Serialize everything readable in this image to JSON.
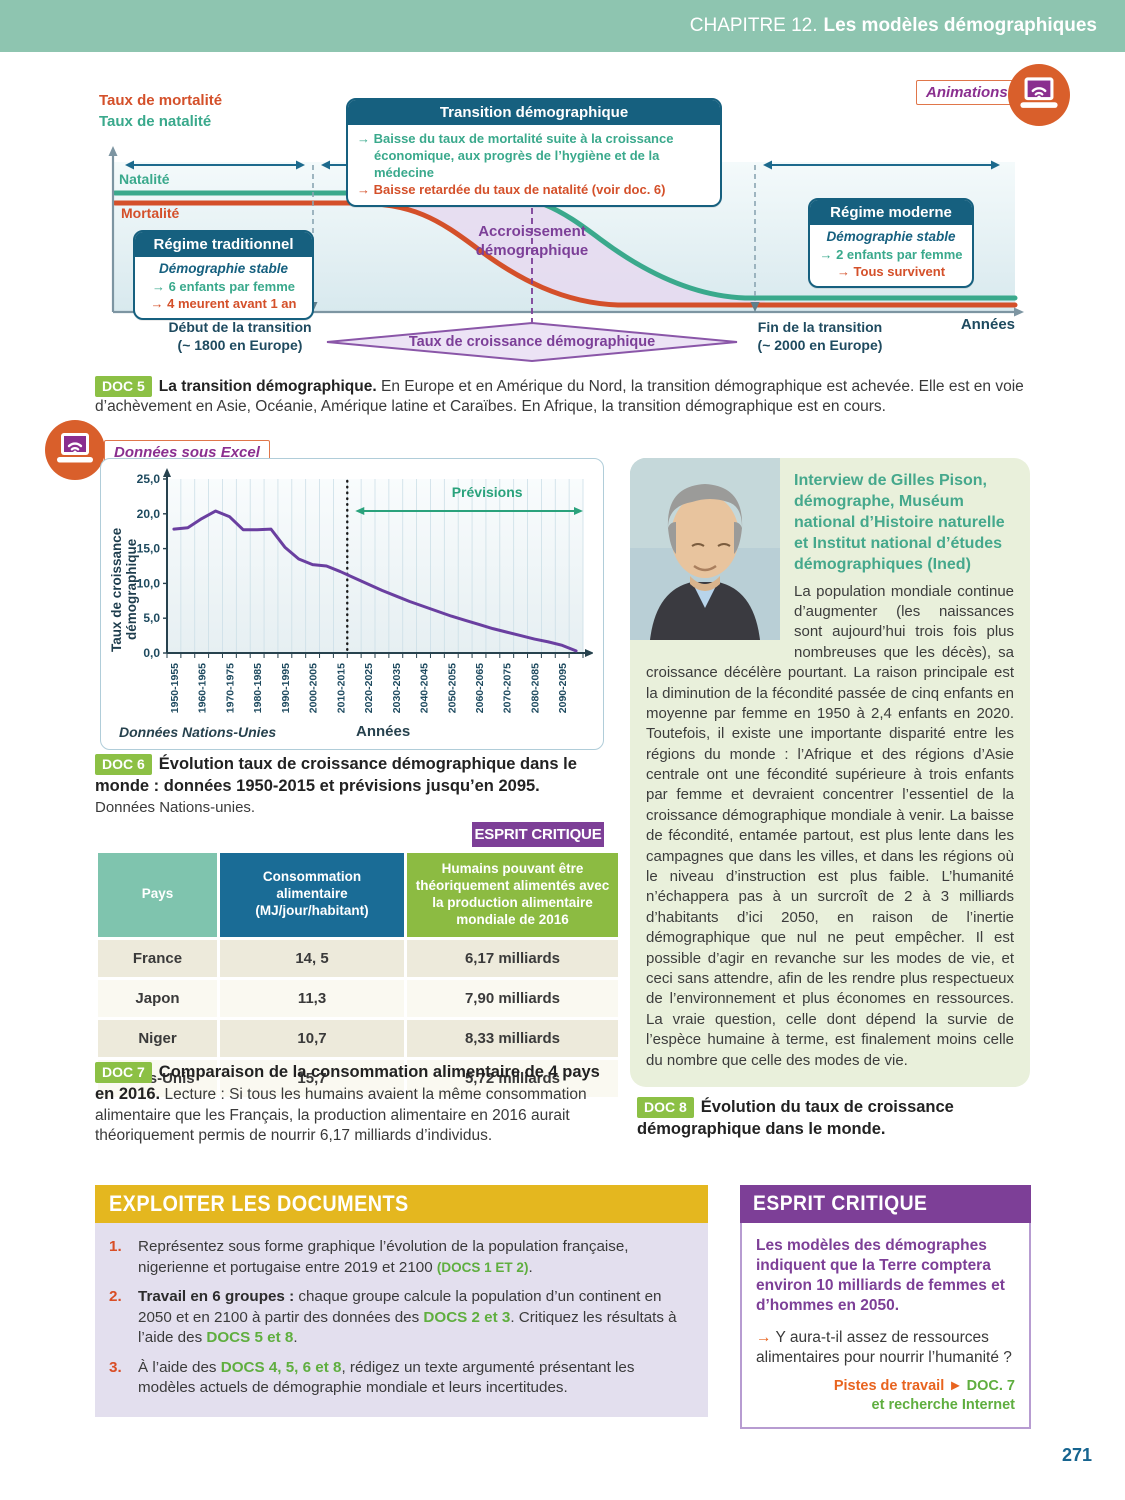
{
  "page": {
    "chapter_prefix": "CHAPITRE 12.",
    "chapter_title": "Les modèles démographiques",
    "page_number": "271"
  },
  "badges": {
    "animations": "Animations",
    "excel": "Données sous Excel"
  },
  "doc5": {
    "badge": "DOC 5",
    "caption_bold": "La transition démographique.",
    "caption_rest": " En Europe et en Amérique du Nord, la transition démographique est achevée. Elle est en voie d’achèvement en Asie, Océanie, Amérique latine et Caraïbes. En Afrique, la transition démographique est en cours.",
    "diagram": {
      "ylab_line1": "Taux de mortalité",
      "ylab_line2": "Taux de natalité",
      "natalite": "Natalité",
      "mortalite": "Mortalité",
      "transition": {
        "title": "Transition démographique",
        "bullet_green": "→ Baisse du taux de mortalité suite à la croissance économique, aux progrès de l’hygiène et de la médecine",
        "bullet_red": "→ Baisse retardée du taux de natalité (voir doc. 6)"
      },
      "regime_trad": {
        "title": "Régime traditionnel",
        "subtitle": "Démographie stable",
        "line_green": "→ 6 enfants par femme",
        "line_red": "→ 4 meurent avant 1 an"
      },
      "regime_mod": {
        "title": "Régime moderne",
        "subtitle": "Démographie stable",
        "line_green": "→ 2 enfants par femme",
        "line_red": "→ Tous survivent"
      },
      "accroissement_l1": "Accroissement",
      "accroissement_l2": "démographique",
      "diamond": "Taux de croissance démographique",
      "debut_l1": "Début de la transition",
      "debut_l2": "(~ 1800 en Europe)",
      "fin_l1": "Fin de la transition",
      "fin_l2": "(~ 2000 en Europe)",
      "annees": "Années"
    }
  },
  "chart_data": {
    "type": "line",
    "categories": [
      "1950-1955",
      "1955-1960",
      "1960-1965",
      "1965-1970",
      "1970-1975",
      "1975-1980",
      "1980-1985",
      "1985-1990",
      "1990-1995",
      "1995-2000",
      "2000-2005",
      "2005-2010",
      "2010-2015",
      "2015-2020",
      "2020-2025",
      "2025-2030",
      "2030-2035",
      "2035-2040",
      "2040-2045",
      "2045-2050",
      "2050-2055",
      "2055-2060",
      "2060-2065",
      "2065-2070",
      "2070-2075",
      "2075-2080",
      "2080-2085",
      "2085-2090",
      "2090-2095",
      "2095-2100"
    ],
    "values": [
      17.8,
      18.0,
      19.3,
      20.4,
      19.6,
      17.7,
      17.7,
      17.8,
      15.2,
      13.5,
      12.7,
      12.5,
      11.7,
      10.8,
      9.9,
      9.0,
      8.2,
      7.4,
      6.7,
      6.0,
      5.3,
      4.7,
      4.1,
      3.5,
      3.0,
      2.5,
      2.0,
      1.6,
      1.1,
      0.3
    ],
    "visible_tick_labels": [
      "1950-1955",
      "1960-1965",
      "1970-1975",
      "1980-1985",
      "1990-1995",
      "2000-2005",
      "2010-2015",
      "2020-2025",
      "2030-2035",
      "2040-2045",
      "2050-2055",
      "2060-2065",
      "2070-2075",
      "2080-2085",
      "2090-2095"
    ],
    "yticks": [
      "0,0",
      "5,0",
      "10,0",
      "15,0",
      "20,0",
      "25,0"
    ],
    "ylim": [
      0,
      25
    ],
    "ylabel": "Taux de croissance démographique",
    "xlabel": "Années",
    "source": "Données Nations-Unies",
    "annotation": "Prévisions",
    "forecast_boundary_index": 13,
    "line_color": "#6a3fa0",
    "grid": true,
    "legend": "none"
  },
  "doc6": {
    "badge": "DOC 6",
    "caption_bold": "Évolution taux de croissance démographique dans le monde : données 1950-2015 et prévisions jusqu’en 2095.",
    "caption_source": "Données Nations-unies."
  },
  "esprit_table_badge": "ESPRIT CRITIQUE",
  "table": {
    "headers": [
      "Pays",
      "Consommation alimentaire (MJ/jour/habitant)",
      "Humains pouvant être théoriquement alimentés avec la production alimentaire mondiale de 2016"
    ],
    "rows": [
      {
        "pays": "France",
        "conso": "14, 5",
        "humains": "6,17 milliards"
      },
      {
        "pays": "Japon",
        "conso": "11,3",
        "humains": "7,90 milliards"
      },
      {
        "pays": "Niger",
        "conso": "10,7",
        "humains": "8,33 milliards"
      },
      {
        "pays": "États-Unis",
        "conso": "15,7",
        "humains": "5,72 milliards"
      }
    ]
  },
  "doc7": {
    "badge": "DOC 7",
    "caption_bold": "Comparaison de la consommation alimentaire de 4 pays en 2016.",
    "caption_rest": " Lecture : Si tous les humains avaient la même consommation alimentaire que les Français, la production alimentaire en 2016 aurait théoriquement permis de nourrir 6,17 milliards d’individus."
  },
  "interview": {
    "heading": "Interview de Gilles Pison, démographe, Muséum national d’Histoire naturelle et Institut national d’études démographiques (Ined)",
    "body": "La population mondiale continue d’augmenter (les naissances sont aujourd’hui trois fois plus nombreuses que les décès), sa croissance décélère pourtant. La raison principale est la diminution de la fécondité passée de cinq enfants en moyenne par femme en 1950 à 2,4 enfants en 2020. Toutefois, il existe une importante disparité entre les régions du monde : l’Afrique et des régions d’Asie centrale ont une fécondité supérieure à trois enfants par femme et devraient concentrer l’essentiel de la croissance démographique mondiale à venir. La baisse de fécondité, entamée partout, est plus lente dans les campagnes que dans les villes, et dans les régions où le niveau d’instruction est plus faible. L’humanité n’échappera pas à un surcroît de 2 à 3 milliards d’habitants d’ici 2050, en raison de l’inertie démographique que nul ne peut empêcher. Il est possible d’agir en revanche sur les modes de vie, et ceci sans attendre, afin de les rendre plus respectueux de l’environnement et plus économes en ressources. La vraie question, celle dont dépend la survie de l’espèce humaine à terme, est finalement moins celle du nombre que celle des modes de vie."
  },
  "doc8": {
    "badge": "DOC 8",
    "caption_bold": "Évolution du taux de croissance démographique dans le monde."
  },
  "exploiter": {
    "title": "EXPLOITER LES DOCUMENTS",
    "item1": {
      "num": "1.",
      "t1": "Représentez sous forme graphique l’évolution de la population française, nigerienne et portugaise entre 2019 et 2100 ",
      "ref": "(DOCS 1 ET 2)",
      "t2": "."
    },
    "item2": {
      "num": "2.",
      "bold": "Travail en 6 groupes :",
      "t1": " chaque groupe calcule la population d’un continent en 2050 et en 2100 à partir des données des ",
      "ref1": "DOCS 2 et 3",
      "t2": ". Critiquez les résultats à l’aide des ",
      "ref2": "DOCS 5 et 8",
      "t3": "."
    },
    "item3": {
      "num": "3.",
      "t1": "À l’aide des ",
      "ref1": "DOCS 4, 5, 6 et 8",
      "t2": ", rédigez un texte argumenté présentant les modèles actuels de démographie mondiale et leurs incertitudes."
    }
  },
  "critique": {
    "title": "ESPRIT CRITIQUE",
    "intro": "Les modèles des démographes indiquent que la Terre comptera environ 10 milliards de femmes et d’hommes en 2050.",
    "arrow": "→",
    "question": "Y aura-t-il assez de ressources alimentaires pour nourrir l’humanité ?",
    "pistes_label": "Pistes de travail",
    "pistes_arrow": "►",
    "pistes_doc": "DOC. 7",
    "pistes_line2": "et recherche Internet"
  }
}
